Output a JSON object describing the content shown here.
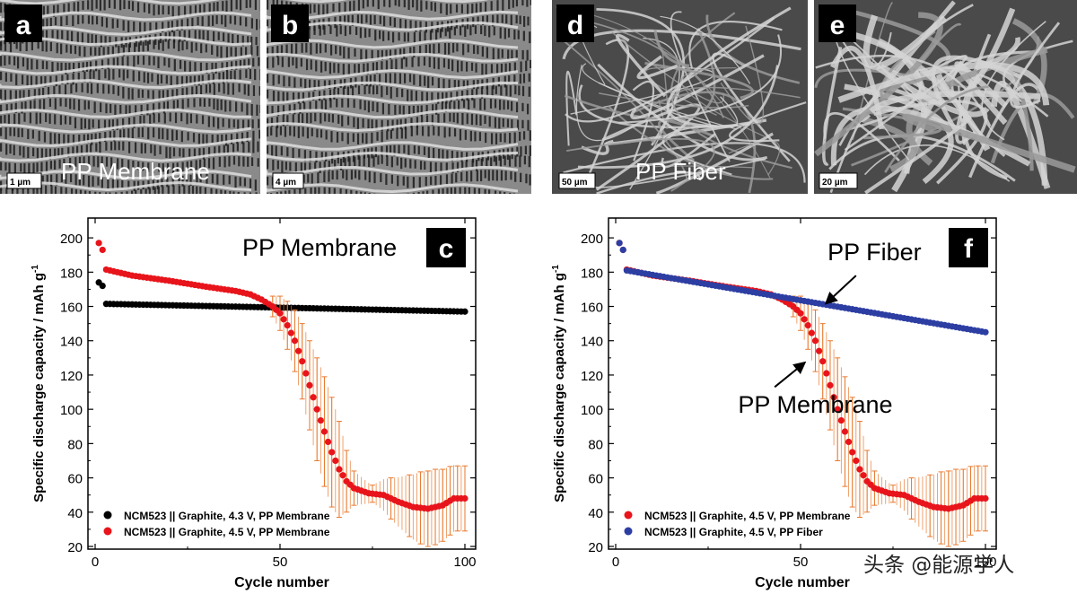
{
  "panels": [
    {
      "letter": "a",
      "caption": "PP Membrane",
      "scalebar": "1 µm",
      "texture": "membrane"
    },
    {
      "letter": "b",
      "caption": "",
      "scalebar": "4 µm",
      "texture": "membrane"
    },
    {
      "letter": "d",
      "caption": "PP Fiber",
      "scalebar": "50 µm",
      "texture": "fiber"
    },
    {
      "letter": "e",
      "caption": "",
      "scalebar": "20 µm",
      "texture": "fiber"
    }
  ],
  "watermark": "头条 @能源学人",
  "colors": {
    "black_series": "#000000",
    "red_series": "#e8141b",
    "blue_series": "#2d3ea3",
    "error_bar": "#e8792e"
  },
  "chart_data": [
    {
      "id": "c",
      "type": "scatter",
      "letter": "c",
      "title": "PP Membrane",
      "xlabel": "Cycle number",
      "ylabel": "Specific discharge capacity / mAh g",
      "ylabel_superscript": "-1",
      "xlim": [
        0,
        100
      ],
      "ylim": [
        20,
        210
      ],
      "xticks": [
        0,
        50,
        100
      ],
      "yticks": [
        20,
        40,
        60,
        80,
        100,
        120,
        140,
        160,
        180,
        200
      ],
      "legend_position": "bottom-left",
      "series": [
        {
          "name": "NCM523 || Graphite, 4.3 V, PP Membrane",
          "color": "#000000",
          "points": [
            [
              1,
              174
            ],
            [
              2,
              172
            ]
          ],
          "segments": [
            {
              "x_start": 3,
              "x_end": 100,
              "y_start": 161.5,
              "y_end": 157
            }
          ]
        },
        {
          "name": "NCM523 || Graphite, 4.5 V, PP Membrane",
          "color": "#e8141b",
          "points": [
            [
              1,
              197
            ],
            [
              2,
              193
            ]
          ],
          "curve": [
            [
              3,
              181.5
            ],
            [
              10,
              178
            ],
            [
              20,
              175
            ],
            [
              30,
              171.5
            ],
            [
              38,
              169
            ],
            [
              42,
              167
            ],
            [
              45,
              164
            ],
            [
              48,
              160
            ],
            [
              50,
              156
            ],
            [
              52,
              149
            ],
            [
              54,
              140
            ],
            [
              56,
              128
            ],
            [
              58,
              114
            ],
            [
              60,
              100
            ],
            [
              62,
              87
            ],
            [
              64,
              75
            ],
            [
              66,
              65
            ],
            [
              68,
              58
            ],
            [
              70,
              54
            ],
            [
              74,
              51
            ],
            [
              78,
              50
            ],
            [
              82,
              46
            ],
            [
              86,
              43
            ],
            [
              90,
              42
            ],
            [
              94,
              44
            ],
            [
              97,
              48
            ],
            [
              100,
              48
            ]
          ],
          "error_bars": [
            [
              48,
              6
            ],
            [
              50,
              10
            ],
            [
              52,
              14
            ],
            [
              54,
              18
            ],
            [
              56,
              22
            ],
            [
              58,
              26
            ],
            [
              60,
              30
            ],
            [
              62,
              32
            ],
            [
              64,
              32
            ],
            [
              66,
              28
            ],
            [
              68,
              18
            ],
            [
              70,
              10
            ],
            [
              75,
              5
            ],
            [
              80,
              12
            ],
            [
              85,
              18
            ],
            [
              88,
              21
            ],
            [
              90,
              22
            ],
            [
              92,
              22
            ],
            [
              94,
              21
            ],
            [
              96,
              20
            ],
            [
              98,
              19
            ],
            [
              100,
              19
            ]
          ]
        }
      ]
    },
    {
      "id": "f",
      "type": "scatter",
      "letter": "f",
      "title": "",
      "xlabel": "Cycle number",
      "ylabel": "Specific discharge capacity / mAh g",
      "ylabel_superscript": "-1",
      "xlim": [
        0,
        100
      ],
      "ylim": [
        20,
        210
      ],
      "xticks": [
        0,
        50,
        100
      ],
      "yticks": [
        20,
        40,
        60,
        80,
        100,
        120,
        140,
        160,
        180,
        200
      ],
      "legend_position": "bottom-left",
      "annotations": [
        {
          "text": "PP Fiber",
          "x": 70,
          "y": 187,
          "arrow_to": [
            57,
            162
          ],
          "arrow_from": [
            65,
            178
          ]
        },
        {
          "text": "PP Membrane",
          "x": 54,
          "y": 98,
          "arrow_to": [
            51,
            127
          ],
          "arrow_from": [
            43,
            113
          ]
        }
      ],
      "series": [
        {
          "name": "NCM523 || Graphite, 4.5 V, PP Membrane",
          "color": "#e8141b",
          "points": [
            [
              1,
              197
            ],
            [
              2,
              193
            ]
          ],
          "curve": [
            [
              3,
              181.5
            ],
            [
              10,
              178
            ],
            [
              20,
              175
            ],
            [
              30,
              171.5
            ],
            [
              38,
              169
            ],
            [
              42,
              167
            ],
            [
              45,
              164
            ],
            [
              48,
              160
            ],
            [
              50,
              156
            ],
            [
              52,
              149
            ],
            [
              54,
              140
            ],
            [
              56,
              128
            ],
            [
              58,
              114
            ],
            [
              60,
              100
            ],
            [
              62,
              87
            ],
            [
              64,
              75
            ],
            [
              66,
              65
            ],
            [
              68,
              58
            ],
            [
              70,
              54
            ],
            [
              74,
              51
            ],
            [
              78,
              50
            ],
            [
              82,
              46
            ],
            [
              86,
              43
            ],
            [
              90,
              42
            ],
            [
              94,
              44
            ],
            [
              97,
              48
            ],
            [
              100,
              48
            ]
          ],
          "error_bars": [
            [
              48,
              6
            ],
            [
              50,
              10
            ],
            [
              52,
              14
            ],
            [
              54,
              18
            ],
            [
              56,
              22
            ],
            [
              58,
              26
            ],
            [
              60,
              30
            ],
            [
              62,
              32
            ],
            [
              64,
              32
            ],
            [
              66,
              28
            ],
            [
              68,
              18
            ],
            [
              70,
              10
            ],
            [
              75,
              5
            ],
            [
              80,
              12
            ],
            [
              85,
              18
            ],
            [
              88,
              21
            ],
            [
              90,
              22
            ],
            [
              92,
              22
            ],
            [
              94,
              21
            ],
            [
              96,
              20
            ],
            [
              98,
              19
            ],
            [
              100,
              19
            ]
          ]
        },
        {
          "name": "NCM523 || Graphite, 4.5 V, PP Fiber",
          "color": "#2d3ea3",
          "points": [
            [
              1,
              197
            ],
            [
              2,
              193
            ]
          ],
          "segments": [
            {
              "x_start": 3,
              "x_end": 100,
              "y_start": 181,
              "y_end": 145
            }
          ]
        }
      ]
    }
  ]
}
